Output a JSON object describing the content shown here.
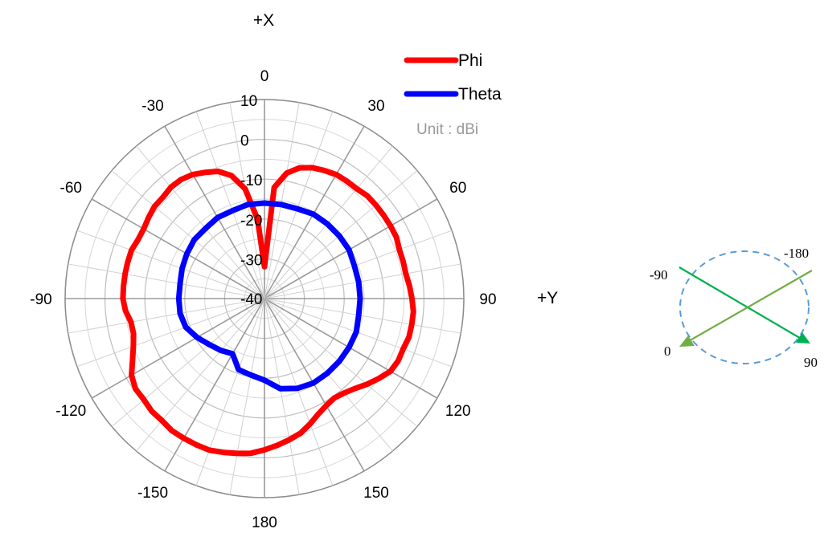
{
  "chart_data": {
    "type": "line",
    "subtype": "polar",
    "axis_x_label": "+X",
    "axis_y_label": "+Y",
    "unit_note": "Unit : dBi",
    "radial_range": [
      -40,
      10
    ],
    "radial_tick_labels": [
      "10",
      "0",
      "-10",
      "-20",
      "-30",
      "-40"
    ],
    "angle_tick_labels": [
      {
        "angle": 0,
        "label": "0"
      },
      {
        "angle": 30,
        "label": "30"
      },
      {
        "angle": 60,
        "label": "60"
      },
      {
        "angle": 90,
        "label": "90"
      },
      {
        "angle": 120,
        "label": "120"
      },
      {
        "angle": 150,
        "label": "150"
      },
      {
        "angle": 180,
        "label": "180"
      },
      {
        "angle": -150,
        "label": "-150"
      },
      {
        "angle": -120,
        "label": "-120"
      },
      {
        "angle": -90,
        "label": "-90"
      },
      {
        "angle": -60,
        "label": "-60"
      },
      {
        "angle": -30,
        "label": "-30"
      }
    ],
    "series": [
      {
        "name": "Phi",
        "color": "#ff0000",
        "angles": [
          0,
          5,
          10,
          15,
          20,
          25,
          30,
          35,
          40,
          45,
          50,
          55,
          60,
          65,
          70,
          75,
          80,
          85,
          90,
          95,
          100,
          105,
          110,
          115,
          120,
          125,
          130,
          135,
          140,
          145,
          150,
          155,
          160,
          165,
          170,
          175,
          180,
          185,
          190,
          195,
          200,
          205,
          210,
          215,
          220,
          225,
          230,
          235,
          240,
          245,
          250,
          255,
          260,
          265,
          270,
          275,
          280,
          285,
          290,
          295,
          300,
          305,
          310,
          315,
          320,
          325,
          330,
          335,
          340,
          345,
          350,
          355
        ],
        "values": [
          -32,
          -12,
          -8,
          -6,
          -5,
          -4.5,
          -4,
          -4,
          -4,
          -3.5,
          -3.5,
          -3.5,
          -3.5,
          -3.5,
          -4,
          -4,
          -4,
          -3.5,
          -3,
          -2.5,
          -2.5,
          -2.5,
          -3,
          -3,
          -3.5,
          -5,
          -6.5,
          -8,
          -9,
          -9.5,
          -9,
          -8,
          -6.5,
          -5,
          -4,
          -3,
          -2,
          -1,
          -0.5,
          0,
          0.5,
          0.5,
          0.5,
          0.5,
          0,
          0,
          -0.5,
          -0.5,
          -1.5,
          -3.5,
          -5,
          -6,
          -6,
          -5,
          -4.5,
          -4.5,
          -4.5,
          -4.5,
          -4.5,
          -5,
          -5,
          -4.5,
          -4,
          -4,
          -3.5,
          -3.5,
          -4,
          -5,
          -6,
          -8,
          -12,
          -20
        ]
      },
      {
        "name": "Theta",
        "color": "#0000ff",
        "angles": [
          0,
          10,
          20,
          30,
          40,
          50,
          60,
          70,
          80,
          90,
          100,
          110,
          120,
          130,
          140,
          150,
          160,
          170,
          180,
          190,
          200,
          210,
          220,
          230,
          240,
          250,
          260,
          270,
          280,
          290,
          300,
          310,
          320,
          330,
          340,
          350
        ],
        "values": [
          -16,
          -16,
          -16,
          -15.5,
          -15.5,
          -15.5,
          -15.5,
          -16,
          -16,
          -16,
          -16,
          -15.5,
          -15.5,
          -15.5,
          -15.5,
          -15.5,
          -16,
          -17,
          -19.5,
          -20.5,
          -21,
          -24,
          -23,
          -22,
          -20.5,
          -19,
          -18.5,
          -18.5,
          -18.5,
          -18,
          -17.5,
          -17,
          -17,
          -16.5,
          -16.5,
          -16
        ]
      }
    ],
    "grid": true,
    "legend_position": "top-right"
  },
  "inset": {
    "labels": {
      "minus90": "-90",
      "minus180": "-180",
      "zero": "0",
      "ninety": "90"
    },
    "ellipse_color": "#5b9bd5",
    "arrow_color_1": "#00b050",
    "arrow_color_2": "#70ad47"
  }
}
